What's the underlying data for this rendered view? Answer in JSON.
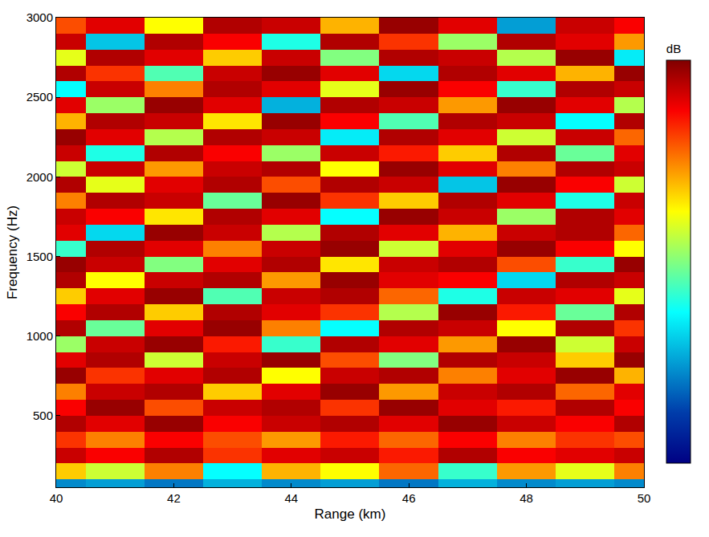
{
  "chart_data": {
    "type": "heatmap",
    "x_label": "Range (km)",
    "y_label": "Frequency (Hz)",
    "colorbar_title": "dB",
    "color": "jet",
    "x": [
      40,
      41,
      42,
      43,
      44,
      45,
      46,
      47,
      48,
      49,
      50
    ],
    "y": [
      50,
      150,
      250,
      350,
      450,
      550,
      650,
      750,
      850,
      950,
      1050,
      1150,
      1250,
      1350,
      1450,
      1550,
      1650,
      1750,
      1850,
      1950,
      2050,
      2150,
      2250,
      2350,
      2450,
      2550,
      2650,
      2750,
      2850,
      2950
    ],
    "z": [
      [
        -76,
        -75,
        -77,
        -74,
        -76,
        -75,
        -77,
        -74,
        -76,
        -75,
        -76
      ],
      [
        -58,
        -62,
        -55,
        -70,
        -57,
        -60,
        -54,
        -68,
        -56,
        -61,
        -55
      ],
      [
        -48,
        -50,
        -47,
        -52,
        -49,
        -48,
        -51,
        -47,
        -50,
        -49,
        -48
      ],
      [
        -52,
        -55,
        -50,
        -53,
        -56,
        -51,
        -54,
        -50,
        -55,
        -52,
        -53
      ],
      [
        -47,
        -49,
        -46,
        -50,
        -48,
        -47,
        -49,
        -46,
        -48,
        -50,
        -47
      ],
      [
        -50,
        -46,
        -53,
        -48,
        -47,
        -52,
        -46,
        -49,
        -51,
        -47,
        -50
      ],
      [
        -55,
        -48,
        -47,
        -58,
        -49,
        -46,
        -56,
        -48,
        -47,
        -54,
        -49
      ],
      [
        -46,
        -52,
        -49,
        -47,
        -60,
        -48,
        -47,
        -55,
        -49,
        -46,
        -57
      ],
      [
        -49,
        -47,
        -62,
        -48,
        -46,
        -53,
        -65,
        -47,
        -48,
        -58,
        -46
      ],
      [
        -64,
        -48,
        -46,
        -51,
        -68,
        -47,
        -49,
        -56,
        -46,
        -62,
        -48
      ],
      [
        -47,
        -66,
        -49,
        -46,
        -55,
        -70,
        -47,
        -48,
        -60,
        -47,
        -52
      ],
      [
        -50,
        -47,
        -58,
        -47,
        -49,
        -52,
        -63,
        -46,
        -51,
        -66,
        -47
      ],
      [
        -58,
        -49,
        -46,
        -67,
        -48,
        -47,
        -54,
        -69,
        -48,
        -49,
        -61
      ],
      [
        -47,
        -60,
        -48,
        -47,
        -56,
        -46,
        -49,
        -50,
        -72,
        -47,
        -48
      ],
      [
        -46,
        -48,
        -65,
        -49,
        -47,
        -59,
        -48,
        -47,
        -53,
        -68,
        -46
      ],
      [
        -68,
        -47,
        -49,
        -55,
        -48,
        -46,
        -62,
        -49,
        -46,
        -50,
        -60
      ],
      [
        -49,
        -72,
        -46,
        -48,
        -63,
        -47,
        -49,
        -57,
        -48,
        -47,
        -54
      ],
      [
        -48,
        -50,
        -59,
        -47,
        -49,
        -70,
        -46,
        -48,
        -64,
        -47,
        -49
      ],
      [
        -55,
        -47,
        -48,
        -66,
        -46,
        -52,
        -58,
        -47,
        -49,
        -69,
        -48
      ],
      [
        -47,
        -61,
        -49,
        -47,
        -53,
        -47,
        -48,
        -73,
        -46,
        -50,
        -62
      ],
      [
        -62,
        -48,
        -56,
        -48,
        -47,
        -60,
        -46,
        -49,
        -55,
        -47,
        -48
      ],
      [
        -48,
        -69,
        -47,
        -50,
        -64,
        -48,
        -51,
        -58,
        -47,
        -66,
        -49
      ],
      [
        -46,
        -49,
        -63,
        -47,
        -48,
        -71,
        -47,
        -49,
        -62,
        -48,
        -54
      ],
      [
        -57,
        -47,
        -48,
        -59,
        -46,
        -50,
        -67,
        -47,
        -48,
        -70,
        -47
      ],
      [
        -49,
        -64,
        -46,
        -49,
        -74,
        -47,
        -48,
        -56,
        -46,
        -49,
        -63
      ],
      [
        -70,
        -48,
        -55,
        -47,
        -49,
        -61,
        -46,
        -50,
        -68,
        -47,
        -48
      ],
      [
        -47,
        -52,
        -67,
        -48,
        -46,
        -49,
        -72,
        -47,
        -49,
        -57,
        -46
      ],
      [
        -61,
        -47,
        -49,
        -58,
        -48,
        -65,
        -47,
        -48,
        -63,
        -46,
        -71
      ],
      [
        -48,
        -73,
        -47,
        -50,
        -69,
        -47,
        -52,
        -64,
        -47,
        -49,
        -56
      ],
      [
        -53,
        -49,
        -60,
        -47,
        -48,
        -57,
        -46,
        -49,
        -75,
        -48,
        -50
      ]
    ],
    "zlim": [
      -85,
      -45
    ],
    "xlim": [
      40,
      50
    ],
    "xticks": [
      40,
      42,
      44,
      46,
      48,
      50
    ],
    "ylim": [
      50,
      3000
    ],
    "yticks": [
      500,
      1000,
      1500,
      2000,
      2500,
      3000
    ]
  }
}
